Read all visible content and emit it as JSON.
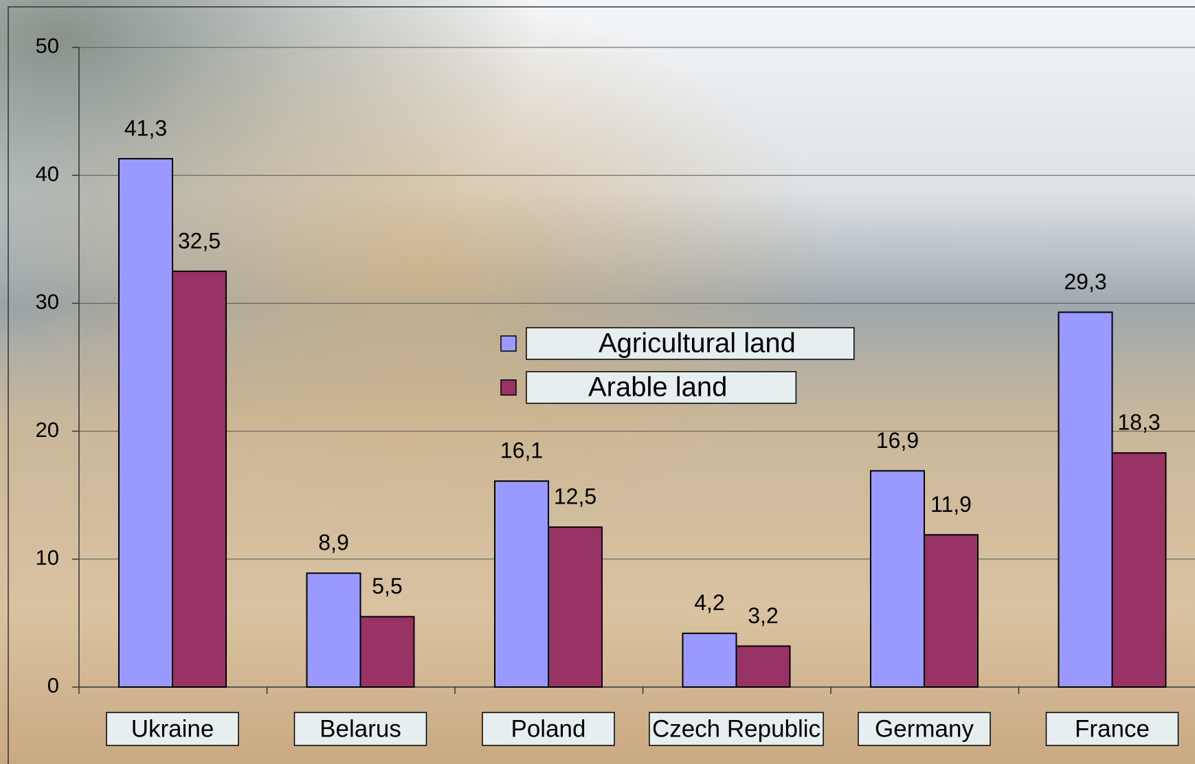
{
  "chart_data": {
    "type": "bar",
    "categories": [
      "Ukraine",
      "Belarus",
      "Poland",
      "Czech Republic",
      "Germany",
      "France"
    ],
    "series": [
      {
        "name": "Agricultural land",
        "color": "#9999ff",
        "values": [
          41.3,
          8.9,
          16.1,
          4.2,
          16.9,
          29.3
        ],
        "value_labels": [
          "41,3",
          "8,9",
          "16,1",
          "4,2",
          "16,9",
          "29,3"
        ]
      },
      {
        "name": "Arable land",
        "color": "#993366",
        "values": [
          32.5,
          5.5,
          12.5,
          3.2,
          11.9,
          18.3
        ],
        "value_labels": [
          "32,5",
          "5,5",
          "12,5",
          "3,2",
          "11,9",
          "18,3"
        ]
      }
    ],
    "ylim": [
      0,
      50
    ],
    "yticks": [
      0,
      10,
      20,
      30,
      40,
      50
    ],
    "grid": true
  }
}
